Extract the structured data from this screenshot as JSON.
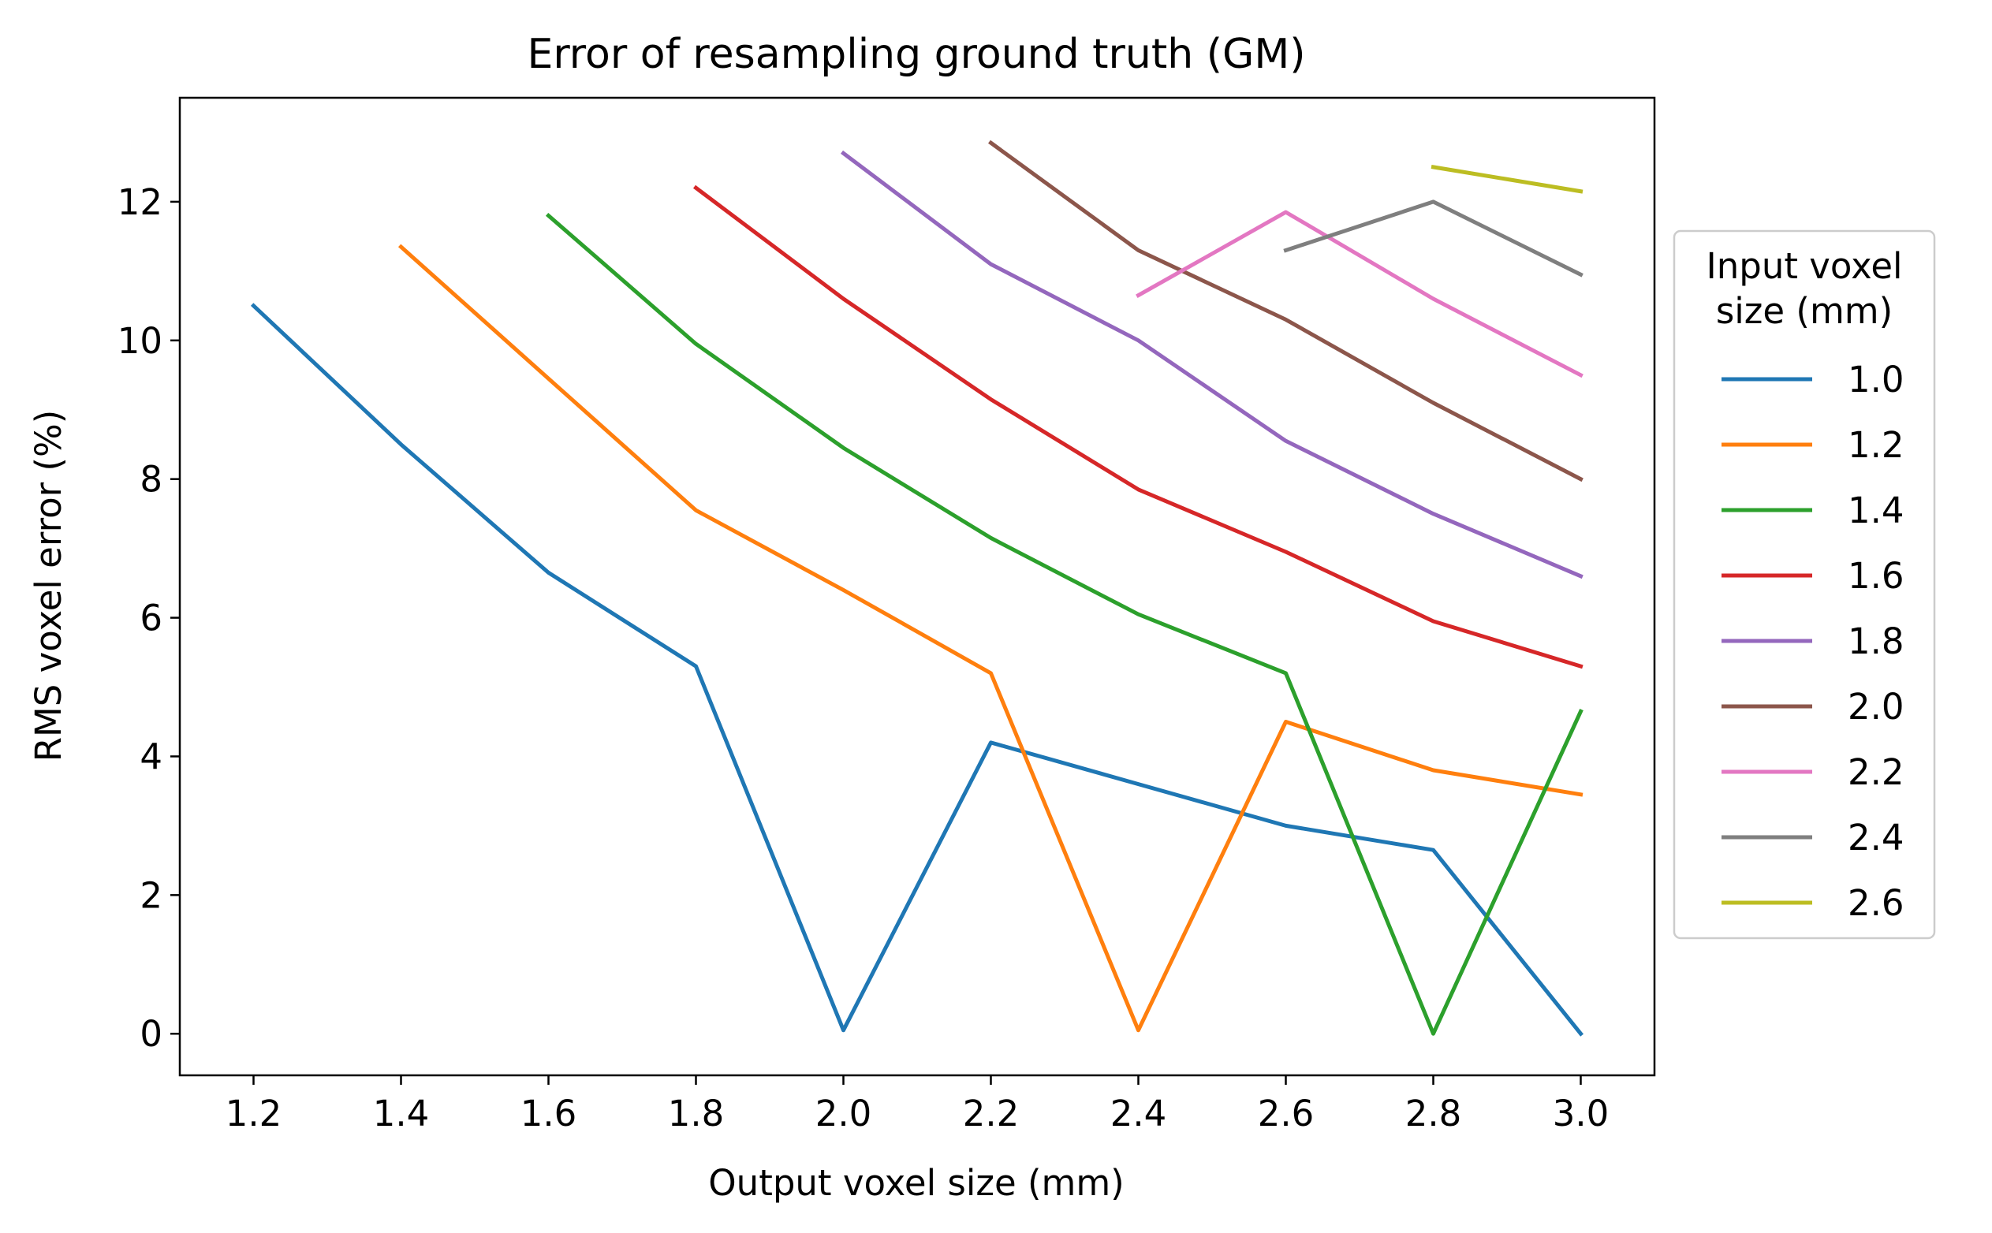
{
  "chart_data": {
    "type": "line",
    "title": "Error of resampling ground truth (GM)",
    "xlabel": "Output voxel size (mm)",
    "ylabel": "RMS voxel error (%)",
    "xlim": [
      1.1,
      3.1
    ],
    "ylim": [
      -0.6,
      13.5
    ],
    "xticks": [
      1.2,
      1.4,
      1.6,
      1.8,
      2.0,
      2.2,
      2.4,
      2.6,
      2.8,
      3.0
    ],
    "xtick_labels": [
      "1.2",
      "1.4",
      "1.6",
      "1.8",
      "2.0",
      "2.2",
      "2.4",
      "2.6",
      "2.8",
      "3.0"
    ],
    "yticks": [
      0,
      2,
      4,
      6,
      8,
      10,
      12
    ],
    "ytick_labels": [
      "0",
      "2",
      "4",
      "6",
      "8",
      "10",
      "12"
    ],
    "grid": false,
    "legend": {
      "title_line1": "Input voxel",
      "title_line2": "size (mm)",
      "placement": "outside-right"
    },
    "series": [
      {
        "name": "1.0",
        "color": "#1f77b4",
        "x": [
          1.2,
          1.4,
          1.6,
          1.8,
          2.0,
          2.2,
          2.4,
          2.6,
          2.8,
          3.0
        ],
        "y": [
          10.5,
          8.5,
          6.65,
          5.3,
          0.05,
          4.2,
          3.6,
          3.0,
          2.65,
          0.0
        ]
      },
      {
        "name": "1.2",
        "color": "#ff7f0e",
        "x": [
          1.4,
          1.6,
          1.8,
          2.0,
          2.2,
          2.4,
          2.6,
          2.8,
          3.0
        ],
        "y": [
          11.35,
          9.45,
          7.55,
          6.4,
          5.2,
          0.05,
          4.5,
          3.8,
          3.45
        ]
      },
      {
        "name": "1.4",
        "color": "#2ca02c",
        "x": [
          1.6,
          1.8,
          2.0,
          2.2,
          2.4,
          2.6,
          2.8,
          3.0
        ],
        "y": [
          11.8,
          9.95,
          8.45,
          7.15,
          6.05,
          5.2,
          0.0,
          4.65
        ]
      },
      {
        "name": "1.6",
        "color": "#d62728",
        "x": [
          1.8,
          2.0,
          2.2,
          2.4,
          2.6,
          2.8,
          3.0
        ],
        "y": [
          12.2,
          10.6,
          9.15,
          7.85,
          6.95,
          5.95,
          5.3
        ]
      },
      {
        "name": "1.8",
        "color": "#9467bd",
        "x": [
          2.0,
          2.2,
          2.4,
          2.6,
          2.8,
          3.0
        ],
        "y": [
          12.7,
          11.1,
          10.0,
          8.55,
          7.5,
          6.6
        ]
      },
      {
        "name": "2.0",
        "color": "#8c564b",
        "x": [
          2.2,
          2.4,
          2.6,
          2.8,
          3.0
        ],
        "y": [
          12.85,
          11.3,
          10.3,
          9.1,
          8.0
        ]
      },
      {
        "name": "2.2",
        "color": "#e377c2",
        "x": [
          2.4,
          2.6,
          2.8,
          3.0
        ],
        "y": [
          10.65,
          11.85,
          10.6,
          9.5
        ]
      },
      {
        "name": "2.4",
        "color": "#7f7f7f",
        "x": [
          2.6,
          2.8,
          3.0
        ],
        "y": [
          11.3,
          12.0,
          10.95
        ]
      },
      {
        "name": "2.6",
        "color": "#bcbd22",
        "x": [
          2.8,
          3.0
        ],
        "y": [
          12.5,
          12.15
        ]
      }
    ]
  }
}
